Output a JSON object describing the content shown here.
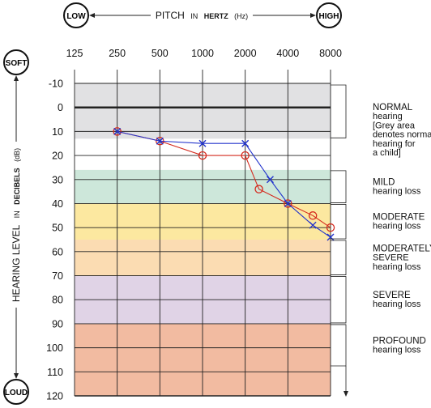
{
  "header": {
    "low": "LOW",
    "high": "HIGH",
    "pitch_prefix": "PITCH",
    "pitch_in": "IN",
    "pitch_unit": "HERTZ",
    "pitch_abbr": "(Hz)"
  },
  "vertical": {
    "soft": "SOFT",
    "loud": "LOUD",
    "label_main": "HEARING LEVEL",
    "label_in": "IN",
    "label_unit": "DECIBELS",
    "label_abbr": "(dB)"
  },
  "chart_data": {
    "type": "line",
    "x": [
      "125",
      "250",
      "500",
      "1000",
      "2000",
      "4000",
      "8000"
    ],
    "y_ticks": [
      "-10",
      "0",
      "10",
      "20",
      "30",
      "40",
      "50",
      "60",
      "70",
      "80",
      "90",
      "100",
      "110",
      "120"
    ],
    "ylim": [
      -10,
      120
    ],
    "y_inverted": true,
    "grid": true,
    "zones": [
      {
        "from": -10,
        "to": 13,
        "color": "#e1e1e3",
        "title": "NORMAL",
        "lines": [
          "hearing",
          "[Grey area",
          "denotes normal",
          "hearing for",
          "a child]"
        ]
      },
      {
        "from": 26,
        "to": 40,
        "color": "#cde7da",
        "title": "MILD",
        "lines": [
          "hearing loss"
        ]
      },
      {
        "from": 40,
        "to": 55,
        "color": "#fce8a0",
        "title": "MODERATE",
        "lines": [
          "hearing loss"
        ]
      },
      {
        "from": 55,
        "to": 70,
        "color": "#fbdcb2",
        "title": "MODERATELY",
        "lines": [
          "SEVERE",
          "hearing loss"
        ]
      },
      {
        "from": 70,
        "to": 90,
        "color": "#e0d3e6",
        "title": "SEVERE",
        "lines": [
          "hearing loss"
        ]
      },
      {
        "from": 90,
        "to": 120,
        "color": "#f2bba1",
        "title": "PROFOUND",
        "lines": [
          "hearing loss"
        ]
      }
    ],
    "series": [
      {
        "marker": "circle",
        "color": "#d42a1e",
        "points": [
          {
            "x": "250",
            "y": 10
          },
          {
            "x": "500",
            "y": 14
          },
          {
            "x": "1000",
            "y": 20
          },
          {
            "x": "2000",
            "y": 20
          },
          {
            "x": "2500",
            "y": 34
          },
          {
            "x": "4000",
            "y": 40
          },
          {
            "x": "6000",
            "y": 45
          },
          {
            "x": "8000",
            "y": 50
          }
        ]
      },
      {
        "marker": "cross",
        "color": "#2233cc",
        "points": [
          {
            "x": "250",
            "y": 10
          },
          {
            "x": "500",
            "y": 14
          },
          {
            "x": "1000",
            "y": 15
          },
          {
            "x": "2000",
            "y": 15
          },
          {
            "x": "3000",
            "y": 30
          },
          {
            "x": "4000",
            "y": 40
          },
          {
            "x": "6000",
            "y": 49
          },
          {
            "x": "8000",
            "y": 54
          }
        ]
      }
    ]
  }
}
